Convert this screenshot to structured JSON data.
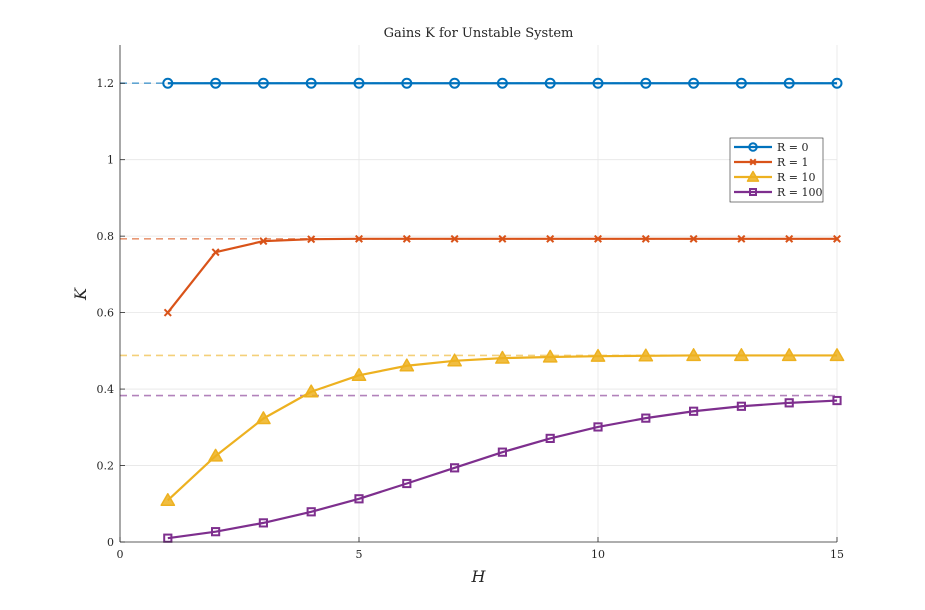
{
  "chart_data": {
    "type": "line",
    "title": "Gains K for Unstable System",
    "xlabel": "H",
    "ylabel": "K",
    "xlim": [
      0,
      15
    ],
    "ylim": [
      0,
      1.3
    ],
    "xticks": [
      0,
      5,
      10,
      15
    ],
    "yticks": [
      0,
      0.2,
      0.4,
      0.6,
      0.8,
      1,
      1.2
    ],
    "xtick_labels": [
      "0",
      "5",
      "10",
      "15"
    ],
    "ytick_labels": [
      "0",
      "0.2",
      "0.4",
      "0.6",
      "0.8",
      "1",
      "1.2"
    ],
    "grid": true,
    "legend_position": "top-right",
    "x": [
      1,
      2,
      3,
      4,
      5,
      6,
      7,
      8,
      9,
      10,
      11,
      12,
      13,
      14,
      15
    ],
    "series": [
      {
        "name": "R = 0",
        "color": "#0072BD",
        "marker": "circle",
        "values": [
          1.2,
          1.2,
          1.2,
          1.2,
          1.2,
          1.2,
          1.2,
          1.2,
          1.2,
          1.2,
          1.2,
          1.2,
          1.2,
          1.2,
          1.2
        ],
        "asymptote": 1.2
      },
      {
        "name": "R = 1",
        "color": "#D95319",
        "marker": "x",
        "values": [
          0.6,
          0.758,
          0.787,
          0.792,
          0.793,
          0.793,
          0.793,
          0.793,
          0.793,
          0.793,
          0.793,
          0.793,
          0.793,
          0.793,
          0.793
        ],
        "asymptote": 0.793
      },
      {
        "name": "R = 10",
        "color": "#EDB120",
        "marker": "triangle",
        "values": [
          0.109,
          0.225,
          0.323,
          0.393,
          0.436,
          0.461,
          0.474,
          0.481,
          0.484,
          0.486,
          0.487,
          0.488,
          0.488,
          0.488,
          0.488
        ],
        "asymptote": 0.488
      },
      {
        "name": "R = 100",
        "color": "#7E2F8E",
        "marker": "square",
        "values": [
          0.01,
          0.027,
          0.05,
          0.079,
          0.113,
          0.153,
          0.194,
          0.235,
          0.271,
          0.301,
          0.324,
          0.342,
          0.355,
          0.364,
          0.37
        ],
        "asymptote": 0.383
      }
    ]
  }
}
